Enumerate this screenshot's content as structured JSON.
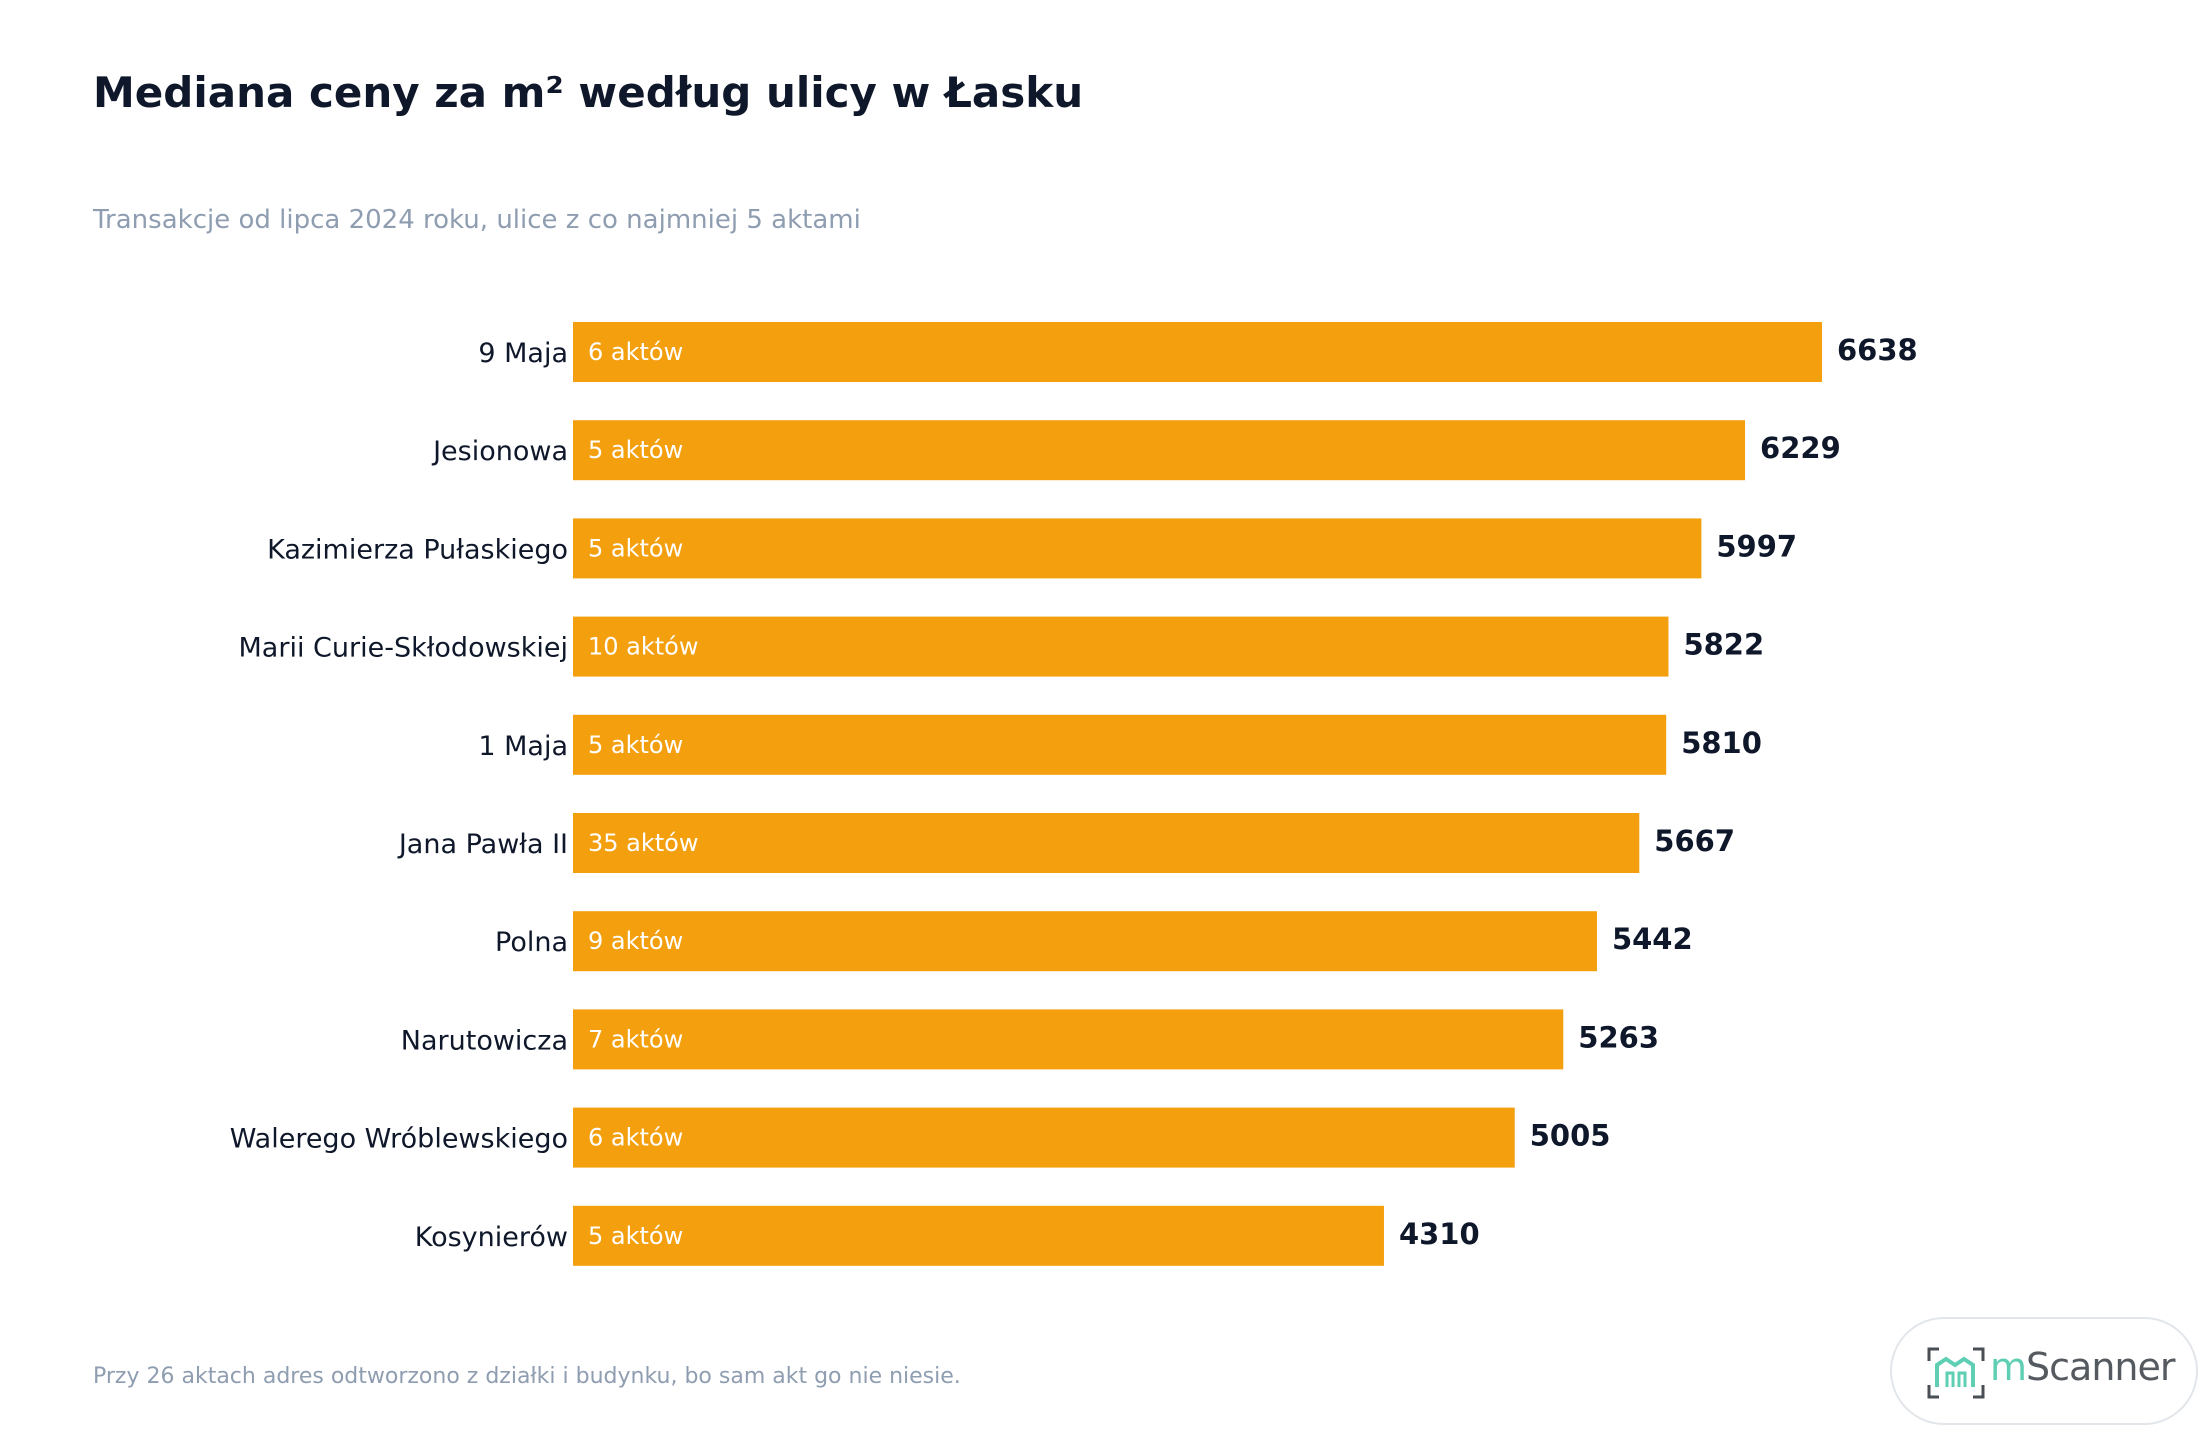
{
  "title": "Mediana ceny za m² według ulicy w Łasku",
  "subtitle": "Transakcje od lipca 2024 roku, ulice z co najmniej 5 aktami",
  "footnote": "Przy 26 aktach adres odtworzono z działki i budynku, bo sam akt go nie niesie.",
  "logo": {
    "prefix": "m",
    "name": "Scanner",
    "icon": "building-scan-icon",
    "colors": {
      "accent": "#5fcfb4",
      "text": "#555a60",
      "bracket": "#4a4f55"
    }
  },
  "colors": {
    "bar": "#f39f0e",
    "label": "#0f172a",
    "bar_text": "#ffffff",
    "muted": "#8f9db1"
  },
  "chart_data": {
    "type": "bar",
    "orientation": "horizontal",
    "categories": [
      "9 Maja",
      "Jesionowa",
      "Kazimierza Pułaskiego",
      "Marii Curie-Skłodowskiej",
      "1 Maja",
      "Jana Pawła II",
      "Polna",
      "Narutowicza",
      "Walerego Wróblewskiego",
      "Kosynierów"
    ],
    "values": [
      6638,
      6229,
      5997,
      5822,
      5810,
      5667,
      5442,
      5263,
      5005,
      4310
    ],
    "counts": [
      "6 aktów",
      "5 aktów",
      "5 aktów",
      "10 aktów",
      "5 aktów",
      "35 aktów",
      "9 aktów",
      "7 aktów",
      "6 aktów",
      "5 aktów"
    ],
    "xlim": [
      0,
      6638
    ],
    "grid": false,
    "legend": "none"
  }
}
